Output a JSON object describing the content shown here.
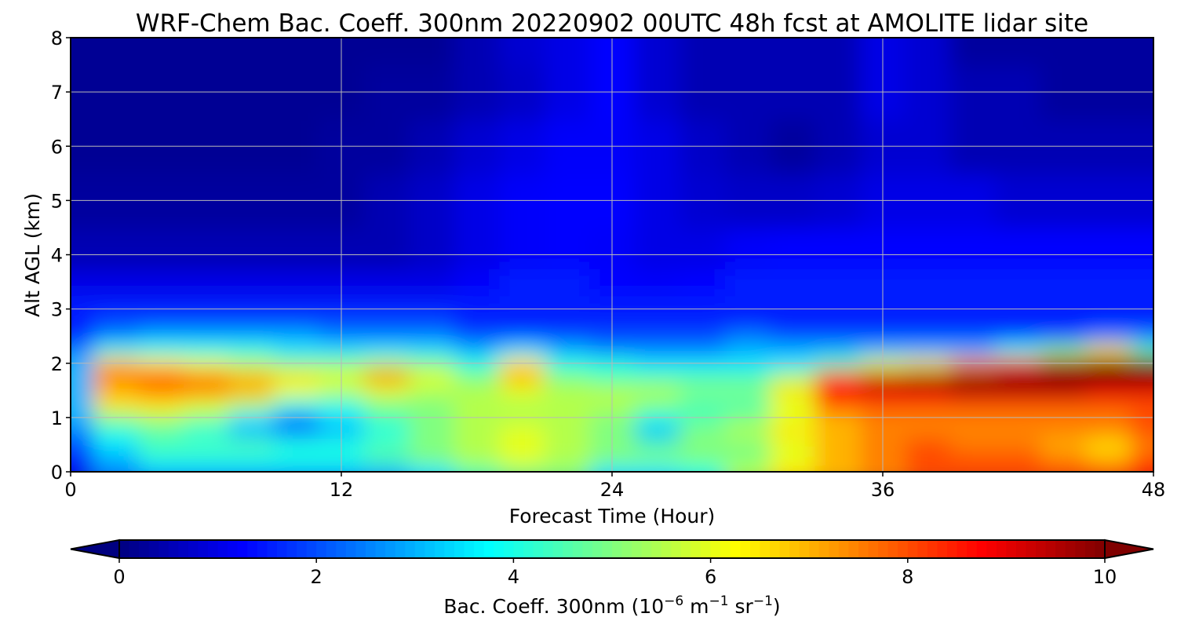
{
  "chart_data": {
    "type": "heatmap",
    "title": "WRF-Chem Bac. Coeff. 300nm  20220902 00UTC 48h fcst at AMOLITE lidar site",
    "xlabel": "Forecast Time (Hour)",
    "ylabel": "Alt AGL (km)",
    "xlim": [
      0,
      48
    ],
    "ylim": [
      0,
      8
    ],
    "xticks": [
      0,
      12,
      24,
      36,
      48
    ],
    "yticks": [
      0,
      1,
      2,
      3,
      4,
      5,
      6,
      7,
      8
    ],
    "grid": true,
    "colormap": "jet",
    "colorbar": {
      "label_main": "Bac. Coeff. 300nm  (10",
      "label_exp1": "−6",
      "label_mid": " m",
      "label_exp2": "−1",
      "label_mid2": " sr",
      "label_exp3": "−1",
      "label_end": ")",
      "vmin": 0,
      "vmax": 10,
      "ticks": [
        0,
        2,
        4,
        6,
        8,
        10
      ],
      "extend": "both",
      "orientation": "horizontal"
    },
    "x": [
      0,
      2,
      4,
      6,
      8,
      10,
      12,
      14,
      16,
      18,
      20,
      22,
      24,
      26,
      28,
      30,
      32,
      34,
      36,
      38,
      40,
      42,
      44,
      46,
      48
    ],
    "y": [
      0,
      0.25,
      0.5,
      0.75,
      1,
      1.25,
      1.5,
      1.75,
      2,
      2.25,
      2.5,
      2.75,
      3,
      3.5,
      4,
      5,
      6,
      7,
      8
    ],
    "z": [
      [
        1.0,
        2.5,
        3.0,
        3.0,
        3.0,
        3.0,
        3.0,
        3.0,
        3.5,
        4.5,
        5.0,
        5.0,
        3.5,
        3.5,
        4.0,
        5.5,
        6.5,
        7.0,
        7.5,
        8.0,
        8.0,
        8.0,
        8.0,
        8.0,
        8.5
      ],
      [
        1.5,
        3.0,
        4.0,
        4.0,
        4.0,
        4.0,
        4.0,
        4.5,
        5.0,
        5.5,
        6.0,
        5.5,
        5.0,
        5.0,
        5.0,
        5.0,
        6.0,
        7.0,
        7.5,
        8.0,
        8.0,
        8.0,
        7.5,
        7.0,
        8.0
      ],
      [
        2.0,
        3.5,
        4.5,
        4.5,
        4.5,
        4.0,
        4.0,
        4.5,
        5.0,
        5.5,
        6.0,
        5.5,
        5.0,
        4.5,
        5.0,
        5.0,
        6.0,
        7.0,
        7.5,
        8.0,
        7.5,
        7.5,
        7.0,
        6.5,
        7.5
      ],
      [
        2.5,
        4.0,
        4.5,
        4.0,
        3.0,
        2.5,
        3.0,
        4.0,
        5.0,
        5.5,
        6.0,
        5.5,
        5.0,
        3.0,
        5.0,
        5.5,
        6.5,
        7.0,
        7.5,
        7.5,
        7.5,
        7.5,
        7.5,
        7.5,
        8.0
      ],
      [
        3.0,
        5.0,
        5.5,
        5.0,
        3.5,
        2.5,
        3.5,
        4.5,
        5.0,
        5.5,
        5.5,
        5.5,
        5.0,
        4.0,
        4.5,
        5.0,
        6.0,
        7.0,
        7.5,
        7.5,
        7.5,
        7.5,
        7.5,
        7.5,
        8.0
      ],
      [
        3.0,
        6.5,
        6.5,
        6.0,
        5.5,
        4.0,
        4.0,
        5.0,
        5.0,
        5.5,
        5.5,
        5.5,
        5.5,
        5.0,
        4.5,
        4.5,
        6.0,
        8.0,
        8.0,
        8.0,
        8.0,
        8.0,
        8.0,
        8.0,
        8.0
      ],
      [
        3.0,
        7.0,
        7.5,
        7.5,
        7.0,
        6.0,
        5.5,
        6.0,
        5.5,
        5.5,
        6.0,
        5.5,
        5.5,
        5.5,
        5.0,
        5.0,
        6.5,
        8.5,
        9.0,
        9.0,
        9.5,
        9.5,
        9.5,
        9.0,
        9.0
      ],
      [
        3.0,
        7.5,
        8.0,
        7.5,
        7.0,
        6.5,
        6.0,
        7.5,
        6.0,
        5.0,
        7.0,
        5.0,
        4.5,
        4.5,
        4.5,
        4.5,
        5.5,
        8.5,
        9.5,
        10.0,
        10.0,
        10.0,
        10.0,
        10.0,
        10.0
      ],
      [
        3.0,
        7.0,
        6.5,
        6.0,
        5.5,
        5.0,
        5.0,
        5.5,
        5.0,
        4.0,
        6.5,
        4.0,
        4.0,
        3.5,
        3.5,
        3.5,
        3.5,
        4.5,
        6.0,
        6.5,
        7.5,
        8.5,
        9.5,
        10.0,
        10.0
      ],
      [
        2.5,
        4.0,
        4.0,
        4.0,
        4.0,
        3.5,
        3.5,
        3.5,
        3.5,
        3.0,
        3.5,
        3.0,
        2.5,
        2.5,
        2.5,
        3.0,
        3.0,
        3.0,
        3.0,
        3.0,
        3.0,
        4.0,
        5.0,
        6.5,
        4.5
      ],
      [
        1.5,
        2.5,
        3.0,
        3.0,
        3.0,
        3.0,
        2.5,
        2.5,
        2.5,
        2.0,
        2.0,
        2.0,
        2.0,
        2.0,
        2.0,
        2.5,
        2.0,
        2.0,
        2.0,
        2.0,
        2.0,
        2.0,
        2.0,
        2.5,
        2.5
      ],
      [
        1.5,
        2.0,
        2.0,
        2.0,
        2.0,
        2.0,
        2.0,
        2.0,
        2.0,
        1.5,
        1.5,
        1.5,
        1.5,
        1.5,
        1.5,
        1.5,
        1.5,
        1.5,
        1.5,
        1.5,
        1.5,
        1.5,
        1.5,
        1.5,
        1.5
      ],
      [
        1.5,
        1.5,
        1.5,
        1.5,
        1.5,
        1.5,
        1.5,
        1.5,
        1.5,
        1.5,
        1.5,
        1.5,
        1.5,
        1.5,
        1.5,
        1.5,
        1.5,
        1.5,
        1.5,
        1.5,
        1.5,
        1.5,
        1.5,
        1.5,
        1.5
      ],
      [
        1.0,
        1.0,
        1.0,
        1.0,
        1.0,
        1.0,
        1.0,
        1.0,
        1.0,
        1.2,
        1.5,
        1.5,
        1.3,
        1.2,
        1.3,
        1.5,
        1.5,
        1.5,
        1.5,
        1.5,
        1.5,
        1.5,
        1.5,
        1.5,
        1.5
      ],
      [
        0.5,
        0.5,
        0.5,
        0.5,
        0.5,
        0.5,
        0.5,
        0.5,
        0.7,
        1.0,
        1.2,
        1.3,
        1.2,
        1.0,
        1.0,
        1.2,
        1.3,
        1.3,
        1.3,
        1.3,
        1.3,
        1.3,
        1.3,
        1.3,
        1.3
      ],
      [
        0.3,
        0.3,
        0.3,
        0.3,
        0.3,
        0.3,
        0.3,
        0.5,
        0.7,
        1.0,
        1.2,
        1.3,
        1.3,
        1.0,
        0.8,
        0.7,
        0.7,
        0.8,
        1.0,
        1.0,
        1.0,
        0.8,
        0.8,
        0.8,
        0.8
      ],
      [
        0.2,
        0.2,
        0.2,
        0.2,
        0.2,
        0.2,
        0.3,
        0.3,
        0.5,
        0.8,
        1.0,
        1.2,
        1.2,
        1.0,
        0.7,
        0.5,
        0.3,
        0.5,
        0.8,
        0.8,
        0.5,
        0.5,
        0.5,
        0.5,
        0.5
      ],
      [
        0.2,
        0.2,
        0.2,
        0.2,
        0.2,
        0.2,
        0.2,
        0.3,
        0.3,
        0.5,
        0.7,
        1.0,
        1.3,
        0.8,
        0.5,
        0.5,
        0.5,
        0.5,
        1.0,
        0.8,
        0.5,
        0.5,
        0.3,
        0.3,
        0.3
      ],
      [
        0.2,
        0.2,
        0.2,
        0.2,
        0.2,
        0.2,
        0.2,
        0.2,
        0.2,
        0.5,
        0.8,
        1.0,
        1.3,
        0.8,
        0.5,
        0.5,
        0.5,
        0.5,
        1.0,
        0.8,
        0.3,
        0.3,
        0.3,
        0.3,
        0.3
      ]
    ]
  }
}
